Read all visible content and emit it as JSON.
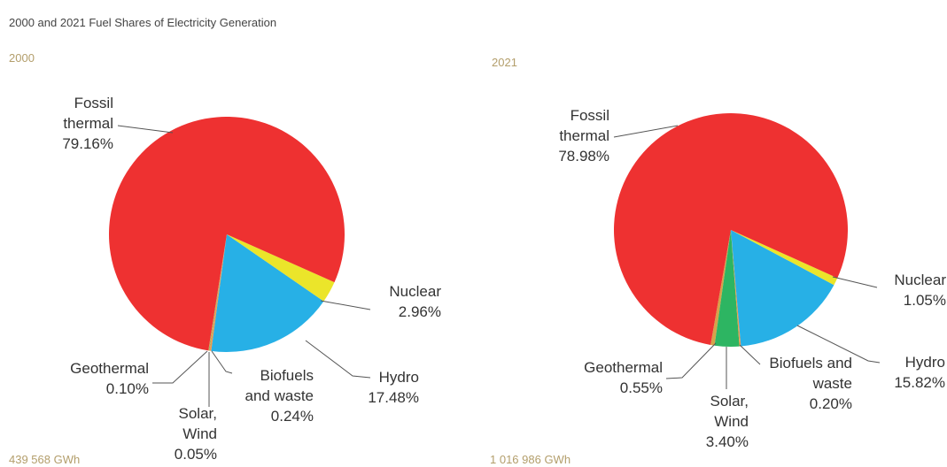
{
  "title": "2000 and 2021 Fuel Shares of Electricity Generation",
  "chart_data": [
    {
      "type": "pie",
      "title": "2000",
      "note": "439 568 GWh",
      "categories": [
        "Fossil thermal",
        "Nuclear",
        "Hydro",
        "Biofuels and waste",
        "Solar, Wind",
        "Geothermal"
      ],
      "values": [
        79.16,
        2.96,
        17.48,
        0.24,
        0.05,
        0.1
      ],
      "value_labels": [
        "79.16%",
        "2.96%",
        "17.48%",
        "0.24%",
        "0.05%",
        "0.10%"
      ],
      "colors": [
        "#ee3131",
        "#ebe52a",
        "#27b0e6",
        "#f29a4a",
        "#2db562",
        "#d6a24a"
      ]
    },
    {
      "type": "pie",
      "title": "2021",
      "note": "1 016 986 GWh",
      "categories": [
        "Fossil thermal",
        "Nuclear",
        "Hydro",
        "Biofuels and waste",
        "Solar, Wind",
        "Geothermal"
      ],
      "values": [
        78.98,
        1.05,
        15.82,
        0.2,
        3.4,
        0.55
      ],
      "value_labels": [
        "78.98%",
        "1.05%",
        "15.82%",
        "0.20%",
        "3.40%",
        "0.55%"
      ],
      "colors": [
        "#ee3131",
        "#ebe52a",
        "#27b0e6",
        "#f29a4a",
        "#2db562",
        "#d6a24a"
      ]
    }
  ]
}
